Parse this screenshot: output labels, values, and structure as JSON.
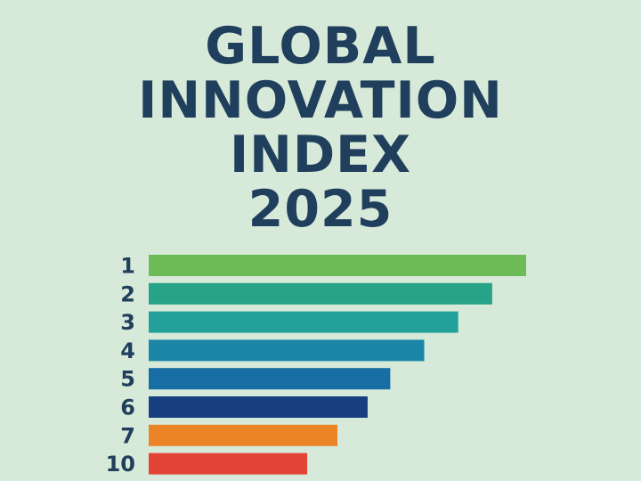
{
  "title": {
    "lines": [
      "GLOBAL",
      "INNOVATION",
      "INDEX",
      "2025"
    ]
  },
  "chart_data": {
    "type": "bar",
    "orientation": "horizontal",
    "title": "GLOBAL INNOVATION INDEX 2025",
    "categories": [
      "1",
      "2",
      "3",
      "4",
      "5",
      "6",
      "7",
      "10"
    ],
    "values": [
      100,
      91,
      82,
      73,
      64,
      58,
      50,
      42
    ],
    "colors": [
      "#6dbb57",
      "#27a388",
      "#22a09a",
      "#1c86a8",
      "#166ea4",
      "#173f7f",
      "#ea8427",
      "#e34435"
    ],
    "xlim": [
      0,
      100
    ],
    "grid": false,
    "legend": "none",
    "axes_visible": false
  }
}
